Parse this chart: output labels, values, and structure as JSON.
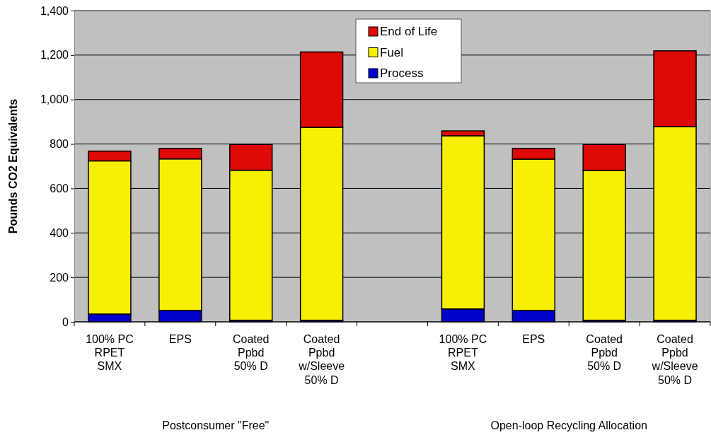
{
  "chart_data": {
    "type": "bar",
    "stacked": true,
    "ylabel": "Pounds CO2 Equivalents",
    "categories": [
      "100% PC\nRPET\nSMX",
      "EPS",
      "Coated\nPpbd\n50% D",
      "Coated\nPpbd\nw/Sleeve\n50% D",
      null,
      "100% PC\nRPET\nSMX",
      "EPS",
      "Coated\nPpbd\n50% D",
      "Coated\nPpbd\nw/Sleeve\n50% D"
    ],
    "series": [
      {
        "name": "Process",
        "color": "#0000cc",
        "values": [
          35,
          51,
          7,
          7,
          null,
          58,
          51,
          7,
          7
        ]
      },
      {
        "name": "Fuel",
        "color": "#f7f005",
        "values": [
          689,
          682,
          675,
          868,
          null,
          779,
          681,
          674,
          871
        ]
      },
      {
        "name": "End of Life",
        "color": "#dd0a06",
        "values": [
          44,
          47,
          116,
          339,
          null,
          22,
          48,
          117,
          341
        ]
      }
    ],
    "ylim": [
      0,
      1400
    ],
    "yticks": [
      {
        "value": 0,
        "label": "0"
      },
      {
        "value": 200,
        "label": "200"
      },
      {
        "value": 400,
        "label": "400"
      },
      {
        "value": 600,
        "label": "600"
      },
      {
        "value": 800,
        "label": "800"
      },
      {
        "value": 1000,
        "label": "1,000"
      },
      {
        "value": 1200,
        "label": "1,200"
      },
      {
        "value": 1400,
        "label": "1,400"
      }
    ],
    "grid": "y",
    "legend": "top",
    "annotations": [
      "Postconsumer \"Free\"",
      "Open-loop Recycling Allocation"
    ]
  }
}
